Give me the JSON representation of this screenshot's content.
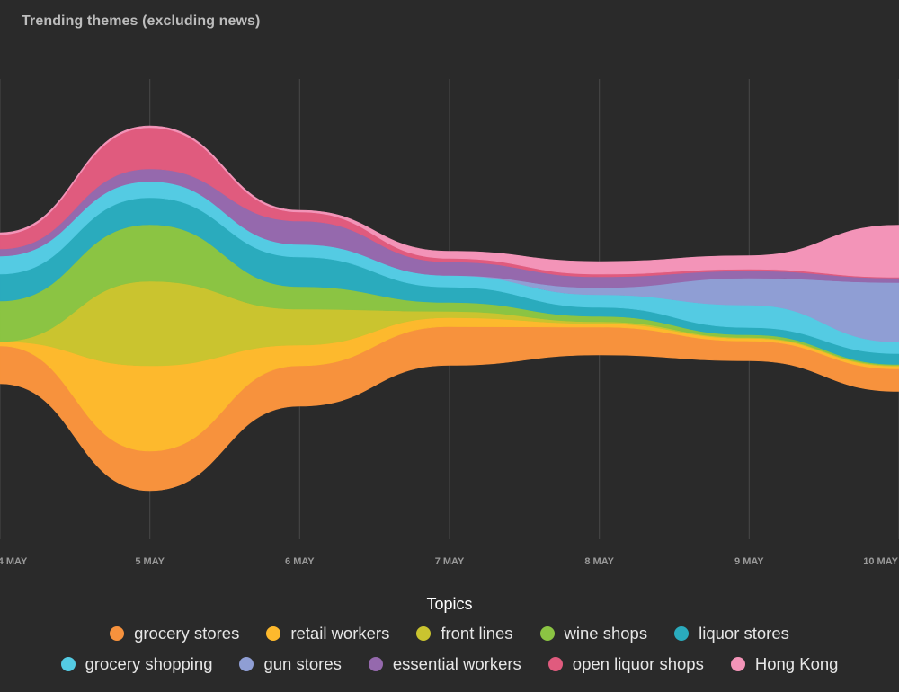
{
  "chart_data": {
    "type": "area",
    "subtype": "streamgraph",
    "title": "Trending themes (excluding news)",
    "xlabel": "",
    "ylabel": "",
    "categories": [
      "4 MAY",
      "5 MAY",
      "6 MAY",
      "7 MAY",
      "8 MAY",
      "9 MAY",
      "10 MAY"
    ],
    "legend_title": "Topics",
    "legend_position": "bottom",
    "grid": "vertical",
    "series": [
      {
        "name": "grocery stores",
        "color": "#f7923d",
        "values": [
          42,
          44,
          45,
          43,
          31,
          22,
          25
        ]
      },
      {
        "name": "retail workers",
        "color": "#fdb92d",
        "values": [
          5,
          95,
          23,
          10,
          4,
          3,
          3
        ]
      },
      {
        "name": "front lines",
        "color": "#cac42f",
        "values": [
          0,
          94,
          40,
          7,
          2,
          1,
          1
        ]
      },
      {
        "name": "wine shops",
        "color": "#8bc443",
        "values": [
          45,
          63,
          25,
          10,
          6,
          3,
          1
        ]
      },
      {
        "name": "liquor stores",
        "color": "#2aabbd",
        "values": [
          30,
          30,
          33,
          17,
          10,
          8,
          12
        ]
      },
      {
        "name": "grocery shopping",
        "color": "#54cbe3",
        "values": [
          20,
          18,
          14,
          13,
          14,
          25,
          13
        ]
      },
      {
        "name": "gun stores",
        "color": "#8f9ed4",
        "values": [
          0,
          0,
          0,
          0,
          8,
          30,
          66
        ]
      },
      {
        "name": "essential workers",
        "color": "#9569ad",
        "values": [
          8,
          14,
          26,
          15,
          12,
          8,
          5
        ]
      },
      {
        "name": "open liquor shops",
        "color": "#e05b7e",
        "values": [
          16,
          46,
          10,
          4,
          3,
          2,
          1
        ]
      },
      {
        "name": "Hong Kong",
        "color": "#f394b8",
        "values": [
          2,
          2,
          2,
          8,
          14,
          15,
          58
        ]
      }
    ]
  }
}
